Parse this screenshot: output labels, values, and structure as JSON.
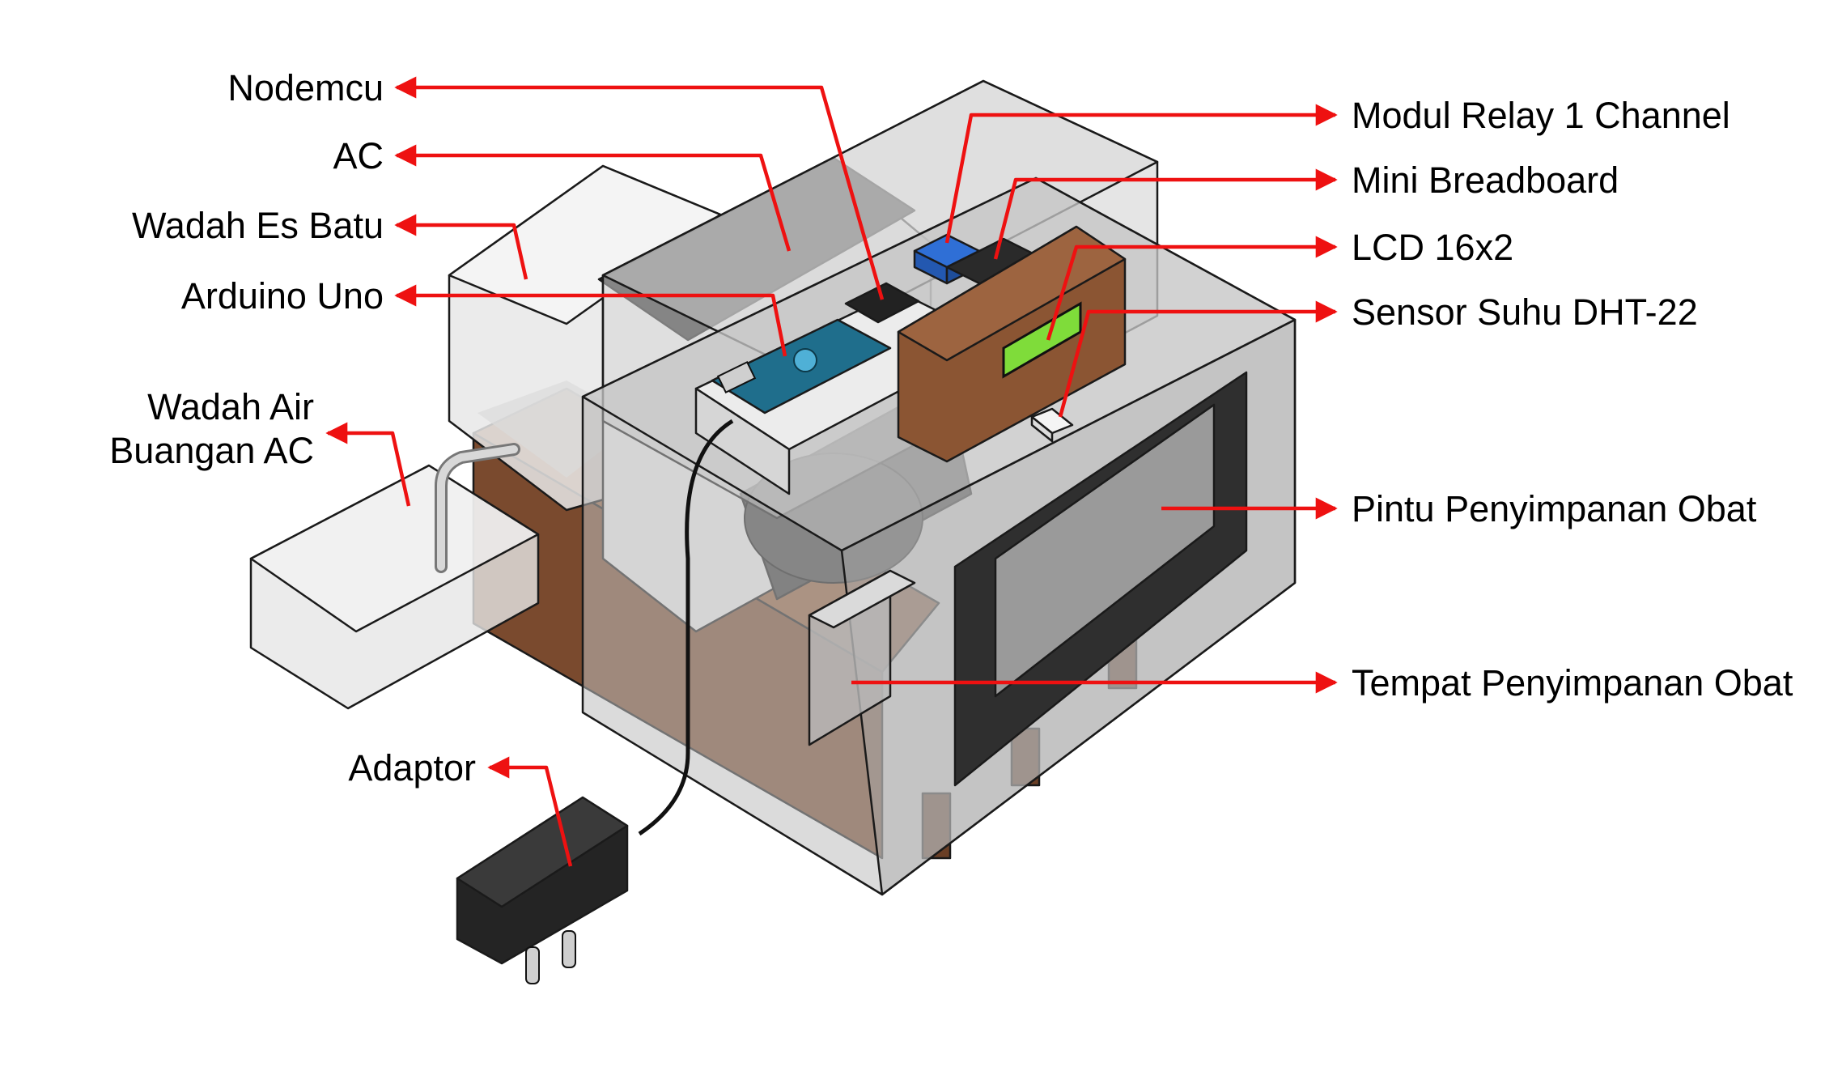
{
  "labels": {
    "nodemcu": "Nodemcu",
    "ac": "AC",
    "wadah_es_batu": "Wadah Es Batu",
    "arduino_uno": "Arduino Uno",
    "wadah_air_line1": "Wadah Air",
    "wadah_air_line2": "Buangan AC",
    "adaptor": "Adaptor",
    "modul_relay": "Modul Relay 1 Channel",
    "mini_breadboard": "Mini Breadboard",
    "lcd": "LCD 16x2",
    "sensor_suhu": "Sensor Suhu DHT-22",
    "pintu": "Pintu Penyimpanan Obat",
    "tempat": "Tempat Penyimpanan Obat"
  },
  "colors": {
    "leader": "#ee1111",
    "wood": "#7a4a2e",
    "acrylic": "#b9b9b9",
    "door_frame": "#2f2f2f",
    "lcd_screen": "#7fdc3a",
    "relay": "#2f6fd6",
    "arduino": "#1f6e8c"
  },
  "icons": {
    "adaptor": "power-adapter-icon",
    "arrow": "arrow-head"
  }
}
